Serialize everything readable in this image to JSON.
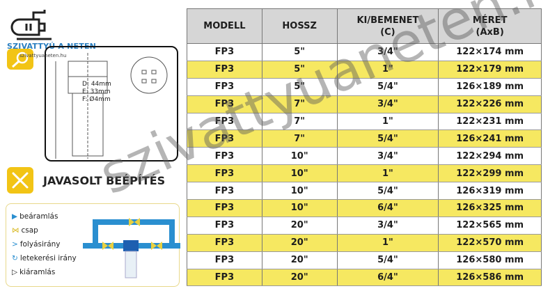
{
  "logo": {
    "name": "SZIVATTYÚ A NETEN",
    "url": "szivattyuaneten.hu"
  },
  "drawing": {
    "dims": [
      "D: 44mm",
      "E: 33mm",
      "F: Ø4mm"
    ]
  },
  "install": {
    "title": "JAVASOLT BEÉPÍTÉS",
    "legend": [
      "beáramlás",
      "csap",
      "folyásirány",
      "letekerési irány",
      "kiáramlás"
    ]
  },
  "table": {
    "headers": [
      "MODELL",
      "HOSSZ",
      "KI/BEMENET\n(C)",
      "MÉRET\n(AxB)"
    ],
    "rows": [
      [
        "FP3",
        "5\"",
        "3/4\"",
        "122×174 mm"
      ],
      [
        "FP3",
        "5\"",
        "1\"",
        "122×179 mm"
      ],
      [
        "FP3",
        "5\"",
        "5/4\"",
        "126×189 mm"
      ],
      [
        "FP3",
        "7\"",
        "3/4\"",
        "122×226 mm"
      ],
      [
        "FP3",
        "7\"",
        "1\"",
        "122×231 mm"
      ],
      [
        "FP3",
        "7\"",
        "5/4\"",
        "126×241 mm"
      ],
      [
        "FP3",
        "10\"",
        "3/4\"",
        "122×294 mm"
      ],
      [
        "FP3",
        "10\"",
        "1\"",
        "122×299 mm"
      ],
      [
        "FP3",
        "10\"",
        "5/4\"",
        "126×319 mm"
      ],
      [
        "FP3",
        "10\"",
        "6/4\"",
        "126×325 mm"
      ],
      [
        "FP3",
        "20\"",
        "3/4\"",
        "122×565 mm"
      ],
      [
        "FP3",
        "20\"",
        "1\"",
        "122×570 mm"
      ],
      [
        "FP3",
        "20\"",
        "5/4\"",
        "126×580 mm"
      ],
      [
        "FP3",
        "20\"",
        "6/4\"",
        "126×586 mm"
      ]
    ]
  },
  "watermark": "szivattyuaneten.hu",
  "colors": {
    "highlight": "#f6e861",
    "header": "#d6d6d6",
    "accent": "#f2c415",
    "pipe": "#2a8fd0"
  }
}
